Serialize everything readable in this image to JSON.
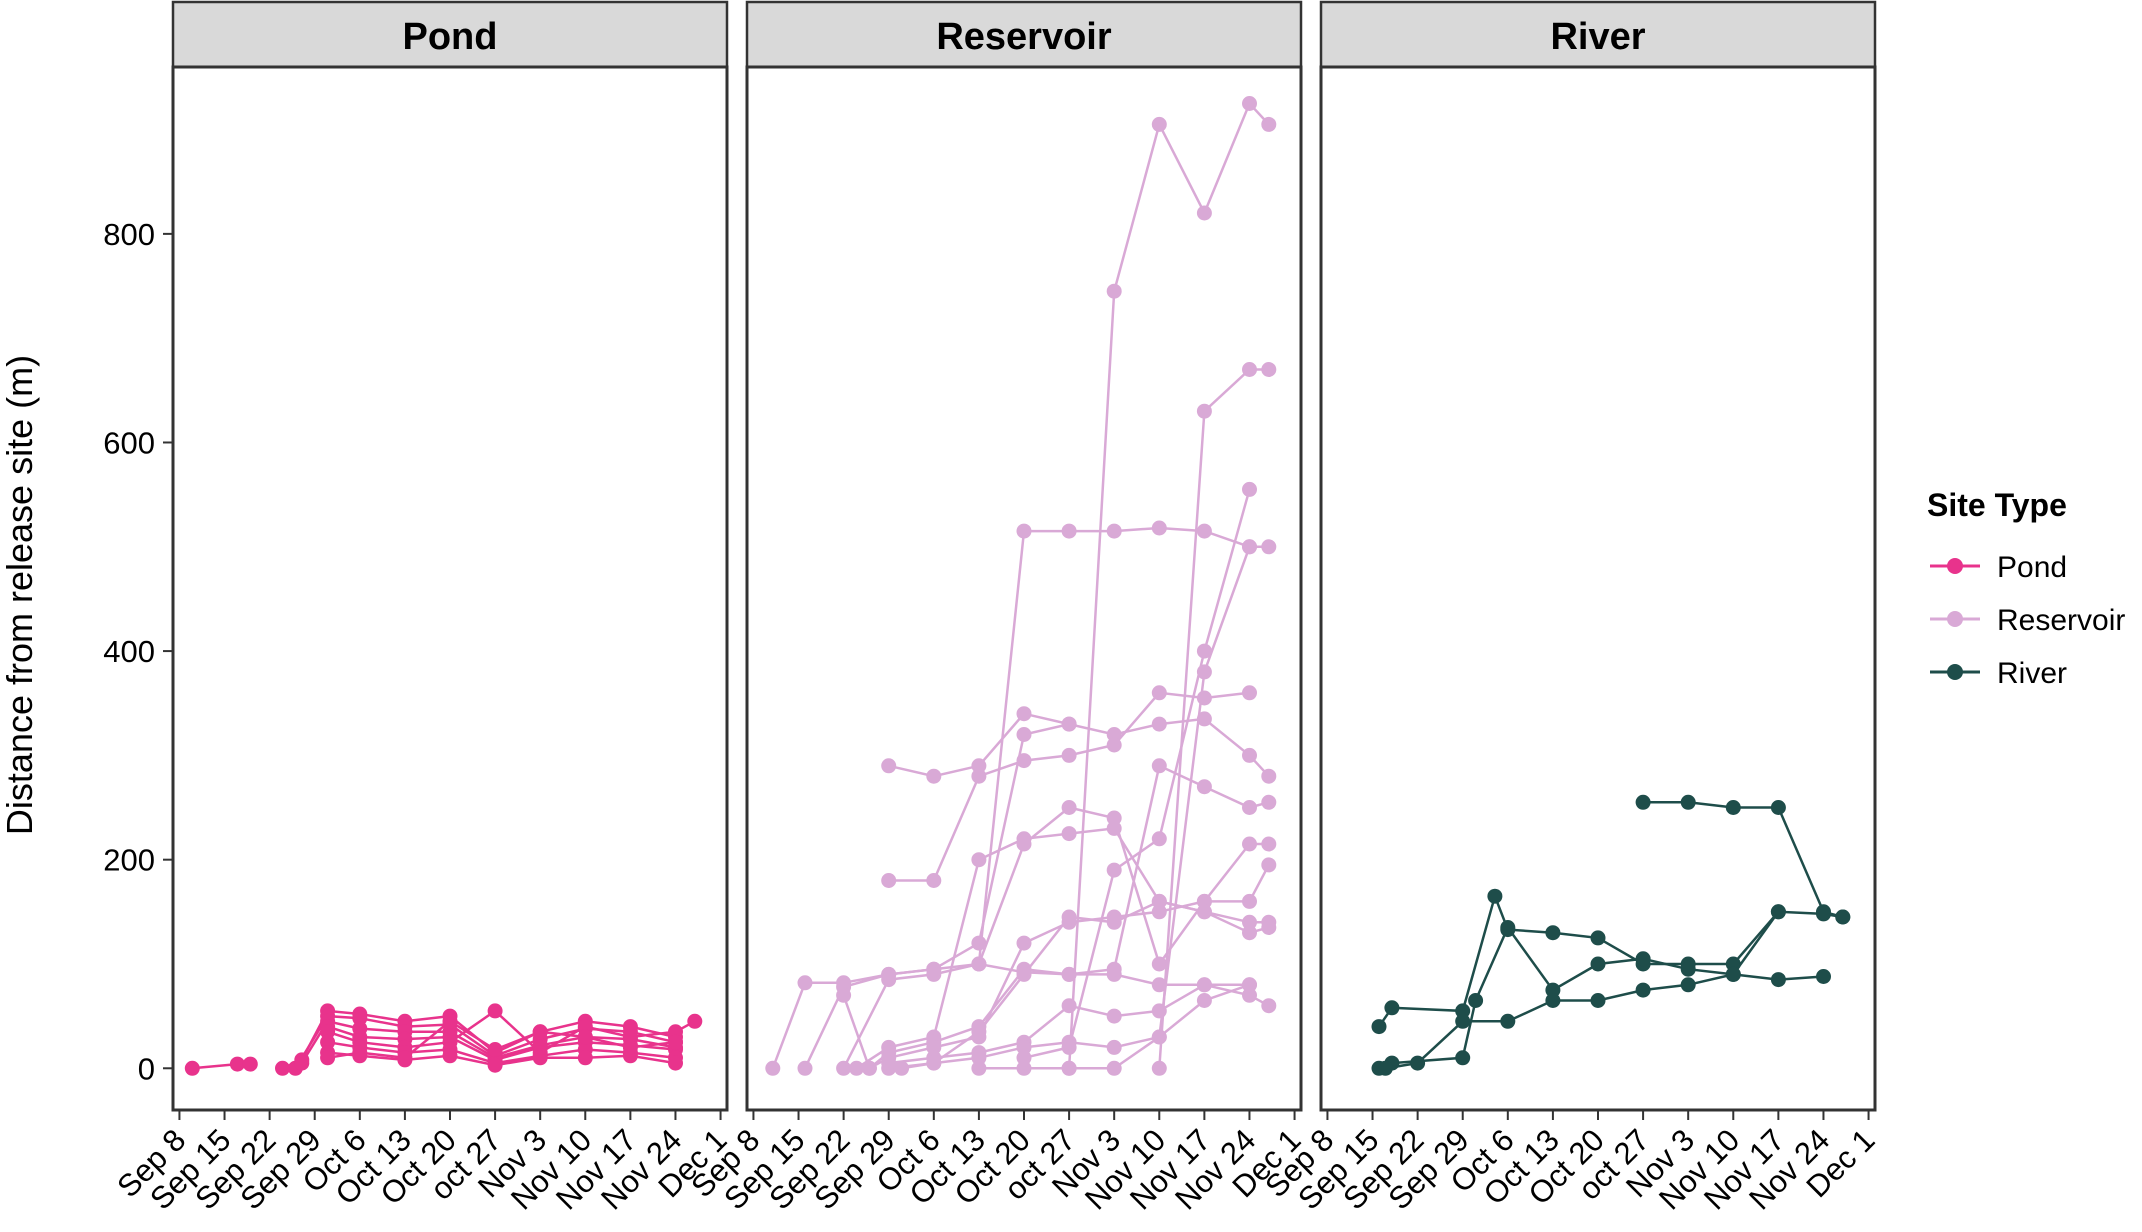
{
  "chart_data": {
    "type": "line",
    "facet_titles": [
      "Pond",
      "Reservoir",
      "River"
    ],
    "ylabel": "Distance from release site (m)",
    "xlabel": "",
    "x_tick_labels": [
      "Sep 8",
      "Sep 15",
      "Sep 22",
      "Sep 29",
      "Oct 6",
      "Oct 13",
      "Oct 20",
      "oct 27",
      "Nov 3",
      "Nov 10",
      "Nov 17",
      "Nov 24",
      "Dec 1"
    ],
    "y_ticks": [
      0,
      200,
      400,
      600,
      800
    ],
    "ylim": [
      -40,
      960
    ],
    "xlim": [
      "Sep 7",
      "Dec 2"
    ],
    "legend": {
      "title": "Site Type",
      "position": "right",
      "entries": [
        "Pond",
        "Reservoir",
        "River"
      ]
    },
    "colors": {
      "Pond": "#e8338c",
      "Reservoir": "#d9a9d6",
      "River": "#1e4d4a",
      "strip_fill": "#d9d9d9",
      "border": "#333333"
    },
    "panels": [
      {
        "facet": "Pond",
        "series": [
          {
            "x": [
              "Sep 10",
              "Sep 17",
              "Sep 19"
            ],
            "y": [
              0,
              4,
              4
            ]
          },
          {
            "x": [
              "Sep 24",
              "Sep 27",
              "Oct 1",
              "Oct 6",
              "Oct 13",
              "Oct 20",
              "Oct 27",
              "Nov 3",
              "Nov 10",
              "Nov 17",
              "Nov 24"
            ],
            "y": [
              0,
              8,
              55,
              52,
              45,
              50,
              15,
              35,
              45,
              40,
              30
            ]
          },
          {
            "x": [
              "Sep 26",
              "Oct 1",
              "Oct 6",
              "Oct 13",
              "Oct 20",
              "Oct 27",
              "Nov 3",
              "Nov 10",
              "Nov 17",
              "Nov 24"
            ],
            "y": [
              0,
              50,
              48,
              40,
              42,
              12,
              28,
              38,
              35,
              25
            ]
          },
          {
            "x": [
              "Sep 27",
              "Oct 1",
              "Oct 6",
              "Oct 13",
              "Oct 20",
              "Oct 27",
              "Nov 3",
              "Nov 10",
              "Nov 17",
              "Nov 24"
            ],
            "y": [
              5,
              45,
              38,
              35,
              35,
              10,
              22,
              30,
              28,
              20
            ]
          },
          {
            "x": [
              "Oct 1",
              "Oct 6",
              "Oct 13",
              "Oct 20",
              "Oct 27",
              "Nov 3",
              "Nov 10",
              "Nov 17",
              "Nov 24"
            ],
            "y": [
              40,
              30,
              28,
              30,
              8,
              20,
              25,
              22,
              18
            ]
          },
          {
            "x": [
              "Oct 1",
              "Oct 6",
              "Oct 13",
              "Oct 20",
              "Oct 27",
              "Nov 3",
              "Nov 10",
              "Nov 17",
              "Nov 24",
              "Nov 27"
            ],
            "y": [
              35,
              25,
              20,
              25,
              55,
              15,
              40,
              30,
              35,
              45
            ]
          },
          {
            "x": [
              "Oct 1",
              "Oct 6",
              "Oct 13",
              "Oct 20",
              "Oct 27",
              "Nov 3",
              "Nov 10",
              "Nov 17",
              "Nov 24"
            ],
            "y": [
              25,
              20,
              15,
              18,
              5,
              12,
              18,
              15,
              10
            ]
          },
          {
            "x": [
              "Oct 1",
              "Oct 6",
              "Oct 13",
              "Oct 20",
              "Oct 27",
              "Nov 3",
              "Nov 10",
              "Nov 17",
              "Nov 24"
            ],
            "y": [
              15,
              12,
              8,
              12,
              3,
              10,
              10,
              12,
              5
            ]
          },
          {
            "x": [
              "Oct 1",
              "Oct 6",
              "Oct 13",
              "Oct 20",
              "Oct 27",
              "Nov 3",
              "Nov 10",
              "Nov 17",
              "Nov 24"
            ],
            "y": [
              10,
              15,
              10,
              45,
              18,
              35,
              30,
              20,
              25
            ]
          }
        ]
      },
      {
        "facet": "Reservoir",
        "series": [
          {
            "x": [
              "Sep 11",
              "Sep 16",
              "Sep 22",
              "Sep 29",
              "Oct 6",
              "Oct 13",
              "Oct 20",
              "Oct 27",
              "Nov 3",
              "Nov 10",
              "Nov 17",
              "Nov 24"
            ],
            "y": [
              0,
              82,
              82,
              90,
              95,
              100,
              92,
              90,
              90,
              80,
              80,
              80
            ]
          },
          {
            "x": [
              "Sep 16",
              "Sep 22",
              "Sep 29",
              "Oct 6",
              "Oct 13",
              "Oct 20",
              "Oct 27",
              "Nov 3",
              "Nov 10",
              "Nov 17",
              "Nov 24",
              "Nov 27"
            ],
            "y": [
              0,
              78,
              90,
              95,
              120,
              320,
              330,
              320,
              330,
              335,
              300,
              280
            ]
          },
          {
            "x": [
              "Sep 22",
              "Sep 29",
              "Oct 6",
              "Oct 13",
              "Oct 20",
              "Oct 27",
              "Nov 3",
              "Nov 10",
              "Nov 17",
              "Nov 24",
              "Nov 27"
            ],
            "y": [
              0,
              85,
              90,
              100,
              215,
              250,
              240,
              100,
              160,
              160,
              195
            ]
          },
          {
            "x": [
              "Sep 24",
              "Sep 29",
              "Oct 6",
              "Oct 13",
              "Oct 20",
              "Oct 27",
              "Nov 3",
              "Nov 10",
              "Nov 17",
              "Nov 24",
              "Nov 27"
            ],
            "y": [
              0,
              20,
              30,
              200,
              220,
              225,
              230,
              160,
              150,
              140,
              140
            ]
          },
          {
            "x": [
              "Sep 22",
              "Sep 26",
              "Sep 29",
              "Oct 6",
              "Oct 13",
              "Oct 20",
              "Oct 27",
              "Nov 3",
              "Nov 10",
              "Nov 17",
              "Nov 24",
              "Nov 27"
            ],
            "y": [
              70,
              0,
              15,
              25,
              40,
              95,
              90,
              95,
              290,
              270,
              250,
              255
            ]
          },
          {
            "x": [
              "Sep 26",
              "Sep 29",
              "Oct 6",
              "Oct 13",
              "Oct 20",
              "Oct 27",
              "Nov 3",
              "Nov 10",
              "Nov 17",
              "Nov 24",
              "Nov 27"
            ],
            "y": [
              0,
              10,
              20,
              30,
              120,
              140,
              145,
              150,
              160,
              215,
              215
            ]
          },
          {
            "x": [
              "Sep 29",
              "Oct 6",
              "Oct 13",
              "Oct 20",
              "Oct 27",
              "Nov 3",
              "Nov 10",
              "Nov 17",
              "Nov 24",
              "Nov 27"
            ],
            "y": [
              0,
              5,
              35,
              90,
              145,
              140,
              160,
              150,
              130,
              135
            ]
          },
          {
            "x": [
              "Sep 29",
              "Oct 6",
              "Oct 13",
              "Oct 20",
              "Oct 27",
              "Nov 3",
              "Nov 10",
              "Nov 17",
              "Nov 24",
              "Nov 27"
            ],
            "y": [
              5,
              10,
              15,
              25,
              60,
              50,
              55,
              80,
              70,
              60
            ]
          },
          {
            "x": [
              "Oct 1",
              "Oct 6",
              "Oct 13",
              "Oct 20",
              "Oct 27",
              "Nov 3",
              "Nov 10",
              "Nov 17",
              "Nov 24"
            ],
            "y": [
              0,
              5,
              10,
              20,
              25,
              20,
              30,
              65,
              80
            ]
          },
          {
            "x": [
              "Oct 13",
              "Oct 20",
              "Oct 27",
              "Nov 3",
              "Nov 10",
              "Nov 17",
              "Nov 24",
              "Nov 27"
            ],
            "y": [
              0,
              0,
              0,
              0,
              30,
              380,
              500,
              500
            ]
          },
          {
            "x": [
              "Oct 13",
              "Oct 20",
              "Oct 27",
              "Nov 3",
              "Nov 10",
              "Nov 17",
              "Nov 24"
            ],
            "y": [
              100,
              515,
              515,
              515,
              518,
              515,
              500
            ]
          },
          {
            "x": [
              "Oct 20",
              "Oct 27",
              "Nov 3",
              "Nov 10",
              "Nov 17",
              "Nov 24"
            ],
            "y": [
              10,
              20,
              190,
              220,
              400,
              555
            ]
          },
          {
            "x": [
              "Oct 27",
              "Nov 3",
              "Nov 10",
              "Nov 17",
              "Nov 24",
              "Nov 27"
            ],
            "y": [
              0,
              745,
              905,
              820,
              925,
              905
            ]
          },
          {
            "x": [
              "Nov 10",
              "Nov 17",
              "Nov 24",
              "Nov 27"
            ],
            "y": [
              0,
              630,
              670,
              670
            ]
          },
          {
            "x": [
              "Sep 29",
              "Oct 6",
              "Oct 13",
              "Oct 20",
              "Oct 27",
              "Nov 3",
              "Nov 10",
              "Nov 17",
              "Nov 24"
            ],
            "y": [
              180,
              180,
              280,
              295,
              300,
              310,
              360,
              355,
              360
            ]
          },
          {
            "x": [
              "Sep 29",
              "Oct 6",
              "Oct 13",
              "Oct 20",
              "Oct 27"
            ],
            "y": [
              290,
              280,
              290,
              340,
              330
            ]
          }
        ]
      },
      {
        "facet": "River",
        "series": [
          {
            "x": [
              "Sep 16",
              "Sep 18",
              "Sep 29",
              "Oct 4",
              "Oct 6",
              "Oct 13",
              "Oct 20",
              "Oct 27",
              "Nov 3",
              "Nov 10",
              "Nov 17"
            ],
            "y": [
              40,
              58,
              55,
              165,
              133,
              130,
              125,
              100,
              100,
              100,
              150
            ]
          },
          {
            "x": [
              "Sep 16",
              "Sep 18",
              "Sep 29",
              "Oct 1",
              "Oct 6",
              "Oct 13",
              "Oct 20",
              "Oct 27",
              "Nov 3",
              "Nov 10",
              "Nov 17",
              "Nov 24"
            ],
            "y": [
              0,
              5,
              10,
              65,
              135,
              75,
              100,
              105,
              95,
              90,
              85,
              88
            ]
          },
          {
            "x": [
              "Sep 17",
              "Sep 22",
              "Sep 29",
              "Oct 6",
              "Oct 13",
              "Oct 20",
              "Oct 27",
              "Nov 3",
              "Nov 10",
              "Nov 17",
              "Nov 24",
              "Nov 27"
            ],
            "y": [
              0,
              5,
              45,
              45,
              65,
              65,
              75,
              80,
              90,
              150,
              148,
              145
            ]
          },
          {
            "x": [
              "Oct 27",
              "Nov 3",
              "Nov 10",
              "Nov 17",
              "Nov 24",
              "Nov 27"
            ],
            "y": [
              255,
              255,
              250,
              250,
              150,
              145
            ]
          }
        ]
      }
    ]
  }
}
